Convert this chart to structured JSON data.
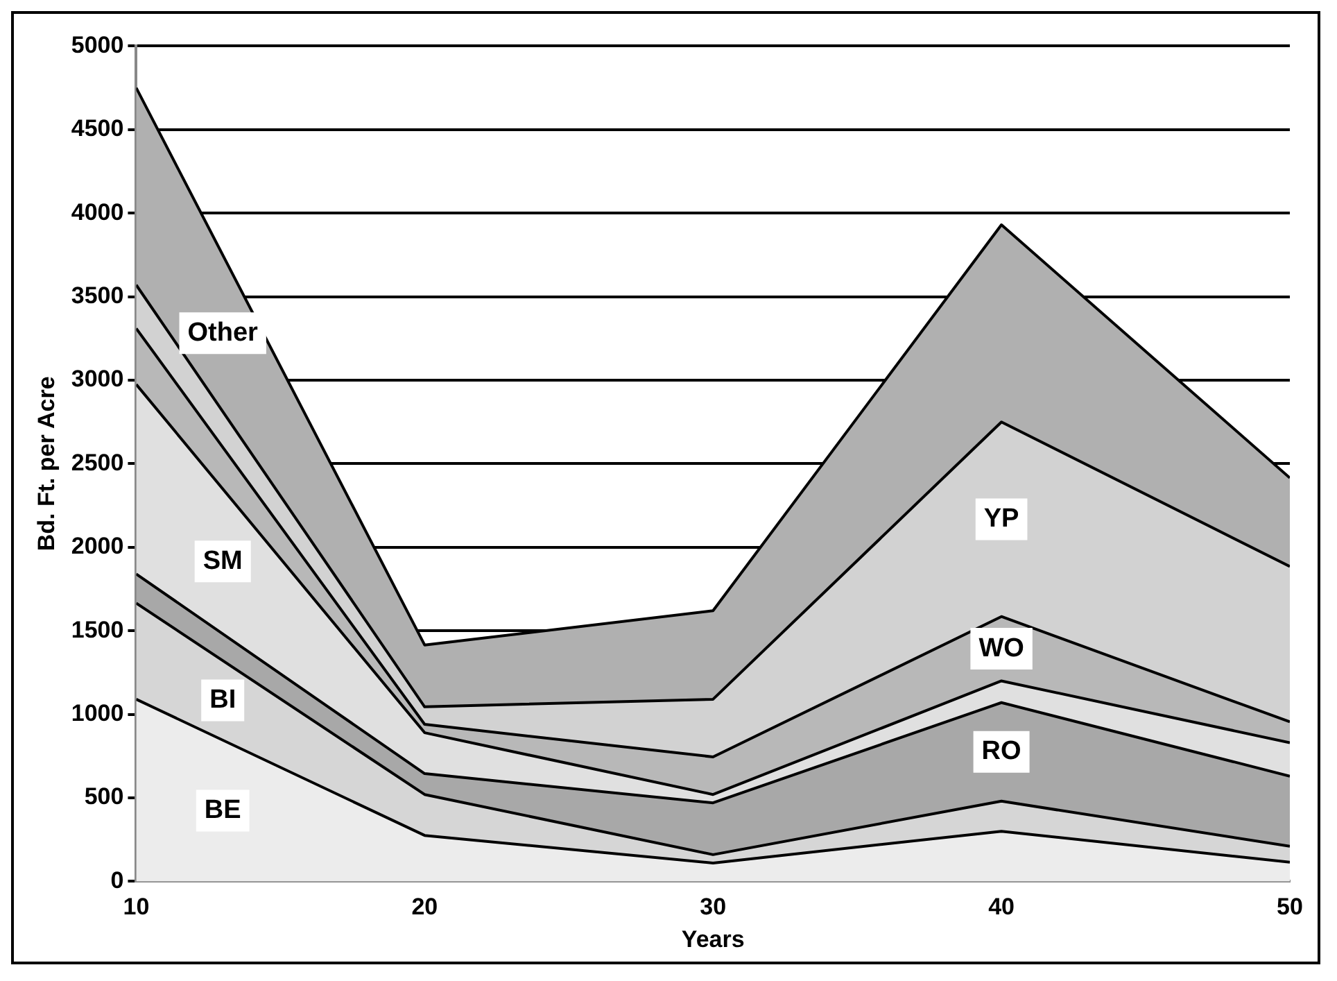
{
  "chart_data": {
    "type": "area",
    "stacked": true,
    "xlabel": "Years",
    "ylabel": "Bd. Ft. per Acre",
    "x": [
      10,
      20,
      30,
      40,
      50
    ],
    "xlim": [
      10,
      50
    ],
    "xticks": [
      10,
      20,
      30,
      40,
      50
    ],
    "ylim": [
      0,
      5000
    ],
    "yticks": [
      0,
      500,
      1000,
      1500,
      2000,
      2500,
      3000,
      3500,
      4000,
      4500,
      5000
    ],
    "grid": "y",
    "legend": false,
    "series": [
      {
        "name": "BE",
        "color": "#ececec",
        "values": [
          1090,
          275,
          110,
          300,
          115
        ]
      },
      {
        "name": "BI",
        "color": "#d6d6d6",
        "values": [
          575,
          245,
          50,
          180,
          95
        ]
      },
      {
        "name": "RO",
        "color": "#a8a8a8",
        "values": [
          175,
          125,
          310,
          590,
          420
        ]
      },
      {
        "name": "SM",
        "color": "#e0e0e0",
        "values": [
          1135,
          245,
          50,
          130,
          200
        ]
      },
      {
        "name": "WO",
        "color": "#b8b8b8",
        "values": [
          335,
          50,
          225,
          385,
          125
        ]
      },
      {
        "name": "YP",
        "color": "#d2d2d2",
        "values": [
          260,
          105,
          345,
          1165,
          930
        ]
      },
      {
        "name": "Other",
        "color": "#b0b0b0",
        "values": [
          1180,
          370,
          530,
          1180,
          530
        ]
      }
    ]
  }
}
